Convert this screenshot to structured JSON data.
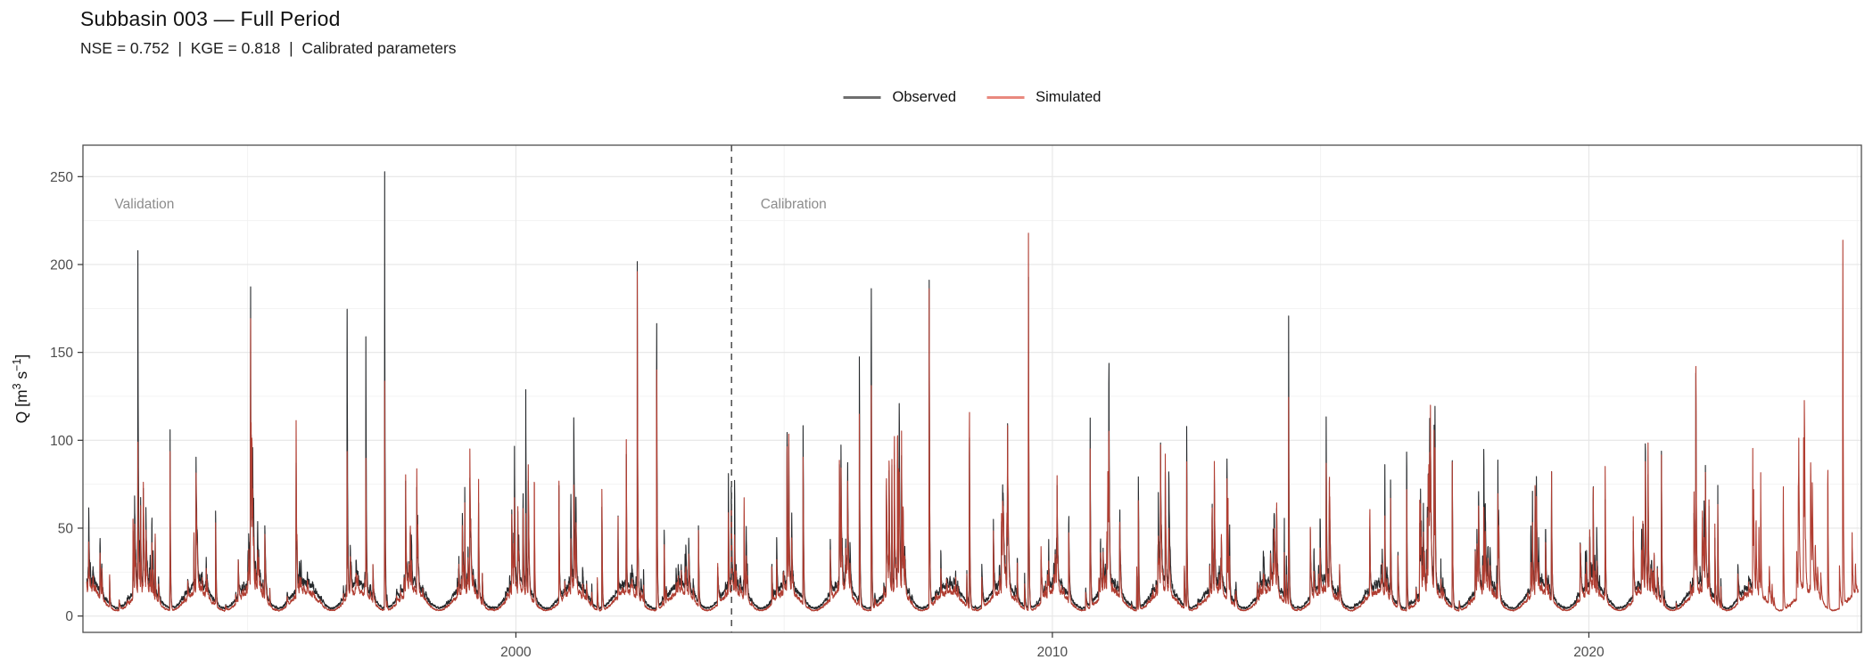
{
  "header": {
    "title": "Subbasin 003 — Full Period",
    "subtitle": "NSE = 0.752  |  KGE = 0.818  |  Calibrated parameters"
  },
  "legend": {
    "items": [
      {
        "label": "Observed",
        "key_color": "#6f6f6f"
      },
      {
        "label": "Simulated",
        "key_color": "#e9897e"
      }
    ]
  },
  "chart_data": {
    "type": "line",
    "title": "Subbasin 003 — Full Period",
    "subtitle": "NSE = 0.752 | KGE = 0.818 | Calibrated parameters",
    "metrics": {
      "NSE": 0.752,
      "KGE": 0.818,
      "note": "Calibrated parameters"
    },
    "xlabel": "",
    "ylabel": "Q [m³ s⁻¹]",
    "ylabel_rich": [
      {
        "t": "Q [m"
      },
      {
        "t": "3",
        "sup": true
      },
      {
        "t": " s"
      },
      {
        "t": "−1",
        "sup": true
      },
      {
        "t": "]"
      }
    ],
    "x_range_years": [
      1991.93,
      2025.08
    ],
    "ylim": [
      -9.3,
      267.9
    ],
    "x_tick_labels": [
      "2000",
      "2010",
      "2020"
    ],
    "x_major_ticks": [
      2000,
      2010,
      2020
    ],
    "x_minor_gridlines": [
      1995,
      2005,
      2015,
      2025
    ],
    "y_tick_labels": [
      "0",
      "50",
      "100",
      "150",
      "200",
      "250"
    ],
    "y_major_ticks": [
      0,
      50,
      100,
      150,
      200,
      250
    ],
    "y_minor_gridlines": [
      25,
      75,
      125,
      175,
      225
    ],
    "grid": "on",
    "legend_position": "top-center",
    "split_line": {
      "x_year": 2004.02,
      "style": "dashed",
      "color": "#555555"
    },
    "annotations": [
      {
        "text": "Validation",
        "x_year": 1992.52,
        "y": 232,
        "color": "#8c8c8c"
      },
      {
        "text": "Calibration",
        "x_year": 2004.56,
        "y": 232,
        "color": "#8c8c8c"
      }
    ],
    "series": [
      {
        "name": "Observed",
        "color": "#26292c",
        "span_years": [
          1992.0,
          2023.05
        ]
      },
      {
        "name": "Simulated",
        "color": "#b13e32",
        "span_years": [
          1992.0,
          2025.02
        ]
      }
    ],
    "baseflow_model": {
      "obs_base_min": 4.5,
      "obs_seasonal_amp": 13.5,
      "sim_base_min": 3.2,
      "sim_seasonal_amp": 10.5,
      "season_phase": 0.07
    },
    "random_storms": {
      "seed": 12,
      "mean_per_year": 18,
      "amp_typical_max": 88,
      "sim_to_obs_factor_range": [
        0.5,
        1.35
      ]
    },
    "major_events": [
      {
        "t": 1992.95,
        "obs": 218,
        "sim": 101
      },
      {
        "t": 1993.55,
        "obs": 108,
        "sim": 96
      },
      {
        "t": 1994.4,
        "obs": 66,
        "sim": 58
      },
      {
        "t": 1995.05,
        "obs": 105,
        "sim": 95
      },
      {
        "t": 1995.9,
        "obs": 70,
        "sim": 97
      },
      {
        "t": 1996.85,
        "obs": 208,
        "sim": 112
      },
      {
        "t": 1997.2,
        "obs": 166,
        "sim": 96
      },
      {
        "t": 1997.55,
        "obs": 255,
        "sim": 136
      },
      {
        "t": 1998.15,
        "obs": 75,
        "sim": 89
      },
      {
        "t": 1999.3,
        "obs": 74,
        "sim": 88
      },
      {
        "t": 2000.18,
        "obs": 138,
        "sim": 62
      },
      {
        "t": 2000.34,
        "obs": 44,
        "sim": 92
      },
      {
        "t": 2000.8,
        "obs": 80,
        "sim": 81
      },
      {
        "t": 2001.6,
        "obs": 67,
        "sim": 80
      },
      {
        "t": 2002.26,
        "obs": 196,
        "sim": 191
      },
      {
        "t": 2002.62,
        "obs": 206,
        "sim": 172
      },
      {
        "t": 2003.4,
        "obs": 57,
        "sim": 55
      },
      {
        "t": 2004.25,
        "obs": 52,
        "sim": 76
      },
      {
        "t": 2005.05,
        "obs": 124,
        "sim": 111
      },
      {
        "t": 2005.35,
        "obs": 116,
        "sim": 94
      },
      {
        "t": 2006.4,
        "obs": 164,
        "sim": 121
      },
      {
        "t": 2006.62,
        "obs": 218,
        "sim": 160
      },
      {
        "t": 2007.05,
        "obs": 100,
        "sim": 127
      },
      {
        "t": 2007.7,
        "obs": 207,
        "sim": 205
      },
      {
        "t": 2008.45,
        "obs": 128,
        "sim": 141
      },
      {
        "t": 2009.55,
        "obs": 204,
        "sim": 236
      },
      {
        "t": 2010.7,
        "obs": 131,
        "sim": 108
      },
      {
        "t": 2011.05,
        "obs": 136,
        "sim": 90
      },
      {
        "t": 2011.6,
        "obs": 90,
        "sim": 70
      },
      {
        "t": 2012.5,
        "obs": 124,
        "sim": 98
      },
      {
        "t": 2013.25,
        "obs": 106,
        "sim": 92
      },
      {
        "t": 2014.4,
        "obs": 182,
        "sim": 131
      },
      {
        "t": 2015.1,
        "obs": 121,
        "sim": 88
      },
      {
        "t": 2016.3,
        "obs": 83,
        "sim": 70
      },
      {
        "t": 2016.6,
        "obs": 104,
        "sim": 78
      },
      {
        "t": 2017.45,
        "obs": 106,
        "sim": 105
      },
      {
        "t": 2018.3,
        "obs": 97,
        "sim": 78
      },
      {
        "t": 2019.3,
        "obs": 95,
        "sim": 94
      },
      {
        "t": 2020.3,
        "obs": 72,
        "sim": 93
      },
      {
        "t": 2021.35,
        "obs": 97,
        "sim": 94
      },
      {
        "t": 2022.4,
        "obs": 78,
        "sim": 68
      },
      {
        "t": 2023.2,
        "obs": null,
        "sim": 85
      },
      {
        "t": 2023.62,
        "obs": null,
        "sim": 90
      },
      {
        "t": 2024.0,
        "obs": null,
        "sim": 89
      },
      {
        "t": 2024.45,
        "obs": null,
        "sim": 104
      },
      {
        "t": 2024.73,
        "obs": null,
        "sim": 244
      }
    ]
  },
  "colors": {
    "observed_line": "#26292c",
    "simulated_line": "#b13e32",
    "panel_border": "#4d4d4d",
    "grid_major": "#e6e6e6",
    "grid_minor": "#f1f1f1",
    "tick_label": "#4d4d4d",
    "annotation_text": "#8c8c8c",
    "split_line": "#555555"
  }
}
